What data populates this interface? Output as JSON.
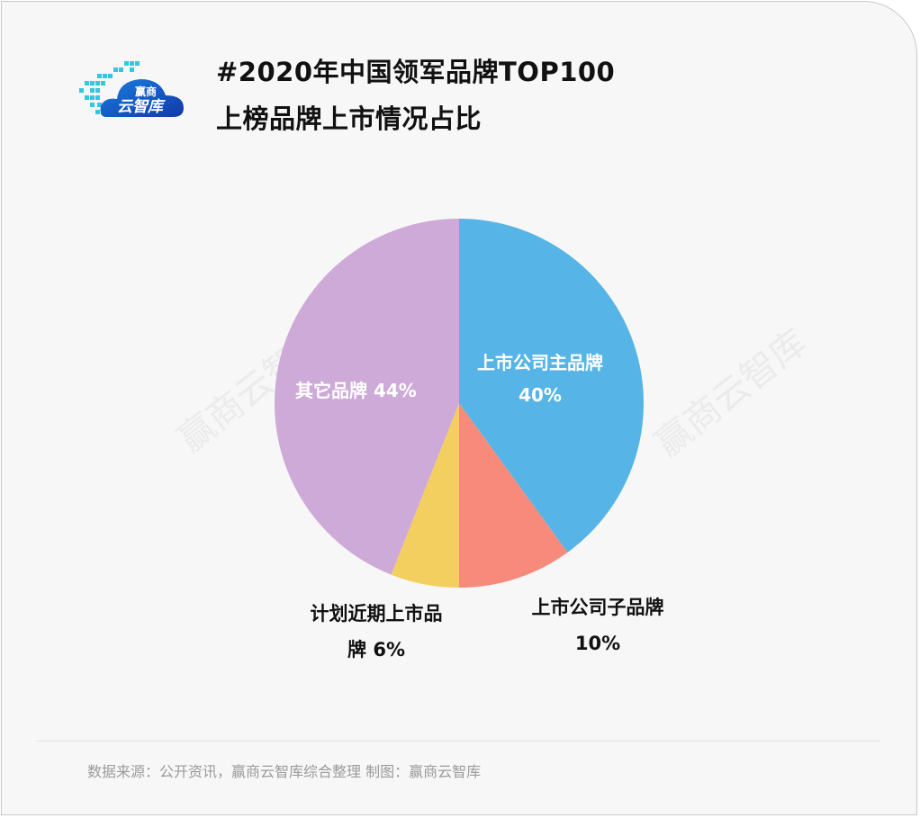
{
  "brand": {
    "logo_line1": "赢商",
    "logo_line2": "云智库"
  },
  "title": {
    "line1": "#2020年中国领军品牌TOP100",
    "line2": "上榜品牌上市情况占比"
  },
  "watermark": "赢商云智库",
  "labels": {
    "listed_main": {
      "name": "上市公司主品牌",
      "pct": "40%"
    },
    "listed_sub": {
      "name": "上市公司子品牌",
      "pct": "10%"
    },
    "planned": {
      "name": "计划近期上市品",
      "name2": "牌",
      "pct": "6%"
    },
    "other": {
      "name": "其它品牌",
      "pct": "44%"
    }
  },
  "footer": {
    "source": "数据来源：公开资讯，赢商云智库综合整理   制图：赢商云智库"
  },
  "chart_data": {
    "type": "pie",
    "title": "#2020年中国领军品牌TOP100 上榜品牌上市情况占比",
    "categories": [
      "上市公司主品牌",
      "上市公司子品牌",
      "计划近期上市品牌",
      "其它品牌"
    ],
    "values": [
      40,
      10,
      6,
      44
    ],
    "unit": "%",
    "colors": [
      "#56b5e6",
      "#f88a7c",
      "#f2cf5f",
      "#ceaad8"
    ],
    "start_angle": "12 o'clock",
    "direction": "clockwise",
    "legend": "none (direct labels)"
  }
}
